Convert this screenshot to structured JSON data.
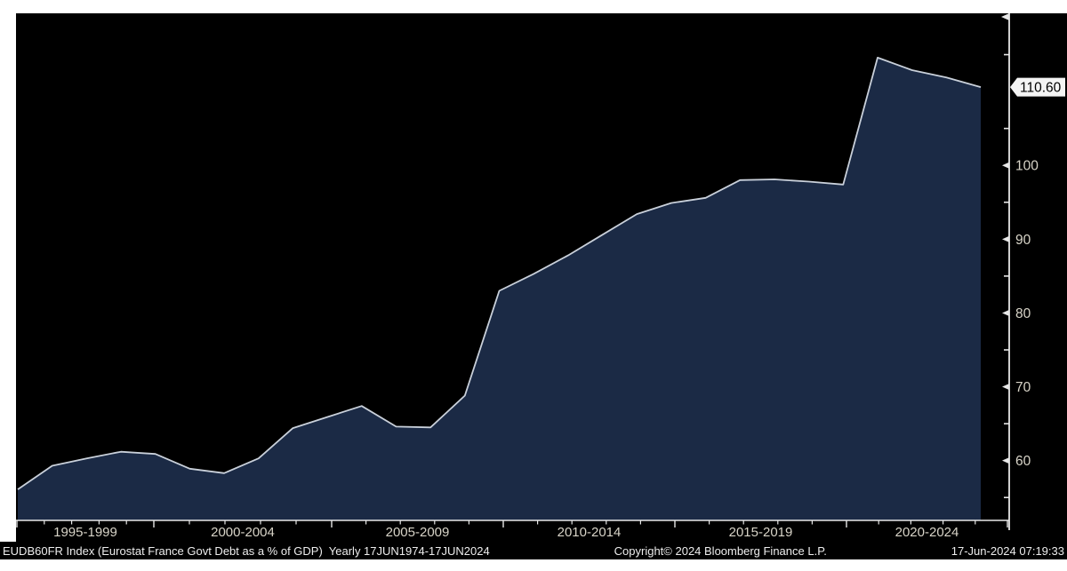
{
  "window": {
    "app": "Bloomberg terminal chart",
    "background_page": "#ffffff",
    "background_panel": "#000000"
  },
  "chart_data": {
    "type": "area",
    "title": "EUDB60FR Index (Eurostat France Govt Debt as a % of GDP)",
    "periodicity": "Yearly",
    "date_range": "17JUN1974-17JUN2024",
    "xlabel": "",
    "ylabel": "Govt Debt as a % of GDP",
    "x": [
      1995,
      1996,
      1997,
      1998,
      1999,
      2000,
      2001,
      2002,
      2003,
      2004,
      2005,
      2006,
      2007,
      2008,
      2009,
      2010,
      2011,
      2012,
      2013,
      2014,
      2015,
      2016,
      2017,
      2018,
      2019,
      2020,
      2021,
      2022,
      2023
    ],
    "series": [
      {
        "name": "EUDB60FR Index",
        "values": [
          56.1,
          59.3,
          60.3,
          61.2,
          60.9,
          58.9,
          58.3,
          60.3,
          64.4,
          65.9,
          67.4,
          64.6,
          64.5,
          68.8,
          83.0,
          85.3,
          87.8,
          90.6,
          93.4,
          94.9,
          95.6,
          98.0,
          98.1,
          97.8,
          97.4,
          114.6,
          112.9,
          111.9,
          110.6
        ]
      }
    ],
    "last_value": 110.6,
    "last_value_label": "110.60",
    "x_tick_labels": [
      "1995-1999",
      "2000-2004",
      "2005-2009",
      "2010-2014",
      "2015-2019",
      "2020-2024"
    ],
    "y_major_ticks": [
      60,
      70,
      80,
      90,
      100
    ],
    "y_minor_ticks": [
      55,
      65,
      75,
      85,
      95,
      105,
      115
    ],
    "ylim": [
      51.9,
      120.6
    ],
    "grid": false,
    "legend_position": "none",
    "colors": {
      "area_fill": "#1b2a45",
      "line": "#c9d0da",
      "axis": "#e8e8e8",
      "tick_text": "#d8d4c8",
      "last_tag_bg": "#f4f4f4",
      "last_tag_text": "#000000",
      "panel_bg": "#000000"
    }
  },
  "footer": {
    "left": "EUDB60FR Index (Eurostat France Govt Debt as a % of GDP)  Yearly 17JUN1974-17JUN2024",
    "copyright": "Copyright© 2024 Bloomberg Finance L.P.",
    "timestamp": "17-Jun-2024 07:19:33"
  }
}
